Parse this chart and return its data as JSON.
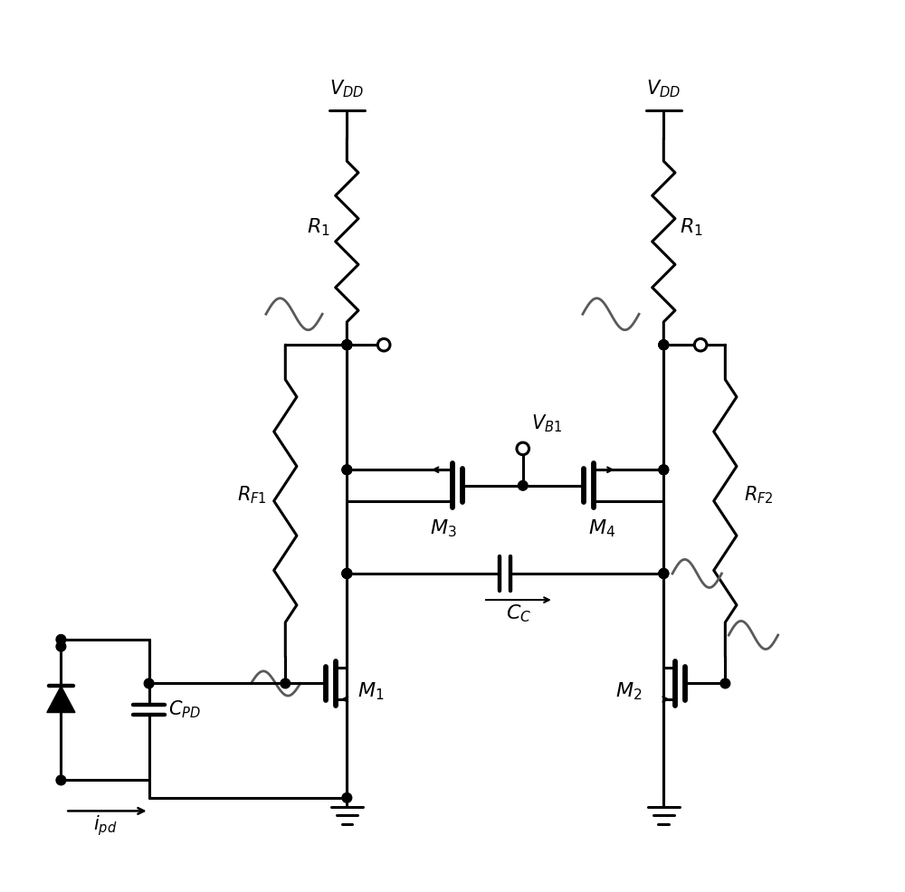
{
  "bg_color": "#ffffff",
  "line_color": "#000000",
  "line_width": 2.2,
  "gray_color": "#5a5a5a",
  "figsize": [
    10.0,
    9.86
  ],
  "dpi": 100
}
